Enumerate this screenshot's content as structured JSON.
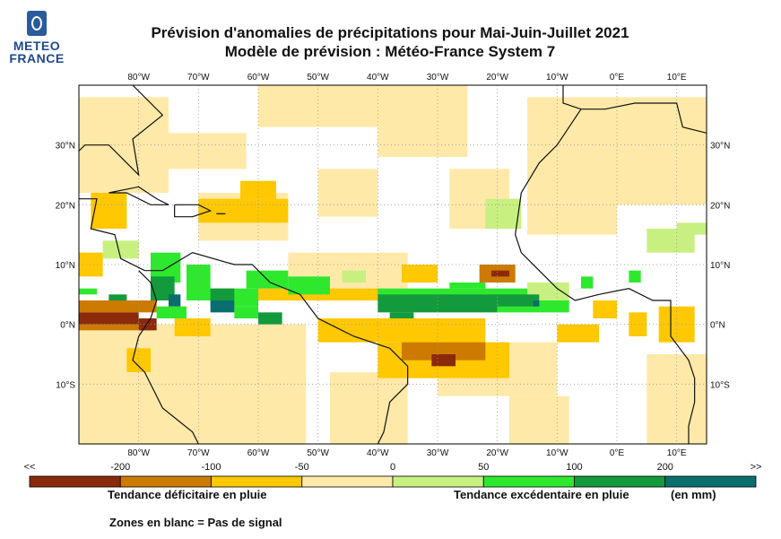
{
  "logo": {
    "line1": "METEO",
    "line2": "FRANCE"
  },
  "title": {
    "line1": "Prévision d'anomalies de précipitations pour Mai-Juin-Juillet 2021",
    "line2": "Modèle de prévision : Météo-France System 7"
  },
  "map": {
    "lon_labels": [
      "80°W",
      "70°W",
      "60°W",
      "50°W",
      "40°W",
      "30°W",
      "20°W",
      "10°W",
      "0°E",
      "10°E"
    ],
    "lat_labels": [
      "30°N",
      "20°N",
      "10°N",
      "0°N",
      "10°S"
    ],
    "extent": {
      "lon_min": -90,
      "lon_max": 15,
      "lat_min": -20,
      "lat_max": 40
    }
  },
  "colorbar": {
    "tick_labels": [
      "<<",
      "-200",
      "-100",
      "-50",
      "0",
      "50",
      "100",
      "200",
      ">>"
    ],
    "colors": [
      "#8b2a0a",
      "#cc7a00",
      "#ffc800",
      "#ffe9a8",
      "#c8f080",
      "#2ee82e",
      "#129a3c",
      "#0a6e6e"
    ]
  },
  "legend": {
    "deficit": "Tendance déficitaire en pluie",
    "excess": "Tendance excédentaire en pluie",
    "unit": "(en mm)",
    "blank_zones": "Zones en blanc = Pas de signal"
  }
}
